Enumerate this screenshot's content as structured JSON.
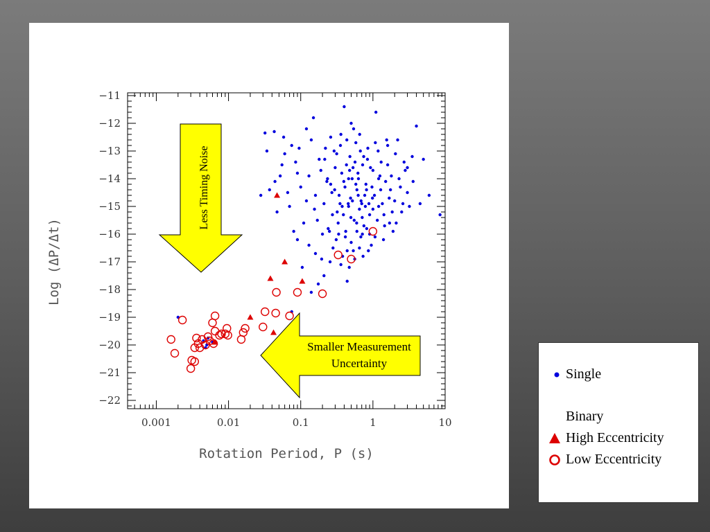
{
  "chart_data": {
    "type": "scatter",
    "title": "",
    "xlabel": "Rotation Period, P (s)",
    "ylabel": "Log (ΔP/Δt)",
    "x_scale": "log",
    "xlim": [
      0.0004,
      10
    ],
    "ylim": [
      -22.3,
      -10.9
    ],
    "x_ticks": [
      {
        "value": 0.001,
        "label": "0.001"
      },
      {
        "value": 0.01,
        "label": "0.01"
      },
      {
        "value": 0.1,
        "label": "0.1"
      },
      {
        "value": 1,
        "label": "1"
      },
      {
        "value": 10,
        "label": "10"
      }
    ],
    "y_ticks": [
      {
        "value": -11,
        "label": "−11"
      },
      {
        "value": -12,
        "label": "−12"
      },
      {
        "value": -13,
        "label": "−13"
      },
      {
        "value": -14,
        "label": "−14"
      },
      {
        "value": -15,
        "label": "−15"
      },
      {
        "value": -16,
        "label": "−16"
      },
      {
        "value": -17,
        "label": "−17"
      },
      {
        "value": -18,
        "label": "−18"
      },
      {
        "value": -19,
        "label": "−19"
      },
      {
        "value": -20,
        "label": "−20"
      },
      {
        "value": -21,
        "label": "−21"
      },
      {
        "value": -22,
        "label": "−22"
      }
    ],
    "grid": false,
    "legend_position": "outside-bottom-right",
    "series": [
      {
        "name": "Single",
        "marker": "dot",
        "color": "#0000dd",
        "points": [
          [
            0.002,
            -19.0
          ],
          [
            0.0045,
            -19.85
          ],
          [
            0.005,
            -20.0
          ],
          [
            0.006,
            -19.9
          ],
          [
            0.0052,
            -19.75
          ],
          [
            0.0048,
            -20.1
          ],
          [
            0.032,
            -12.35
          ],
          [
            0.043,
            -12.3
          ],
          [
            0.037,
            -14.4
          ],
          [
            0.044,
            -14.1
          ],
          [
            0.06,
            -13.1
          ],
          [
            0.055,
            -13.5
          ],
          [
            0.07,
            -15.0
          ],
          [
            0.075,
            -12.8
          ],
          [
            0.085,
            -13.4
          ],
          [
            0.09,
            -13.8
          ],
          [
            0.1,
            -14.3
          ],
          [
            0.12,
            -14.8
          ],
          [
            0.13,
            -13.9
          ],
          [
            0.14,
            -12.6
          ],
          [
            0.15,
            -11.8
          ],
          [
            0.16,
            -14.6
          ],
          [
            0.17,
            -15.5
          ],
          [
            0.18,
            -13.3
          ],
          [
            0.2,
            -16.0
          ],
          [
            0.21,
            -14.9
          ],
          [
            0.22,
            -12.9
          ],
          [
            0.24,
            -15.8
          ],
          [
            0.26,
            -14.2
          ],
          [
            0.28,
            -16.5
          ],
          [
            0.3,
            -13.6
          ],
          [
            0.32,
            -15.2
          ],
          [
            0.34,
            -14.6
          ],
          [
            0.36,
            -12.4
          ],
          [
            0.38,
            -16.8
          ],
          [
            0.4,
            -11.4
          ],
          [
            0.42,
            -15.9
          ],
          [
            0.44,
            -17.7
          ],
          [
            0.46,
            -14.0
          ],
          [
            0.48,
            -13.2
          ],
          [
            0.5,
            -16.3
          ],
          [
            0.52,
            -14.8
          ],
          [
            0.55,
            -15.5
          ],
          [
            0.58,
            -12.7
          ],
          [
            0.6,
            -14.4
          ],
          [
            0.62,
            -13.8
          ],
          [
            0.65,
            -15.1
          ],
          [
            0.68,
            -16.1
          ],
          [
            0.7,
            -14.9
          ],
          [
            0.72,
            -13.5
          ],
          [
            0.75,
            -15.7
          ],
          [
            0.8,
            -14.2
          ],
          [
            0.85,
            -12.9
          ],
          [
            0.9,
            -15.3
          ],
          [
            0.95,
            -16.4
          ],
          [
            1.0,
            -13.7
          ],
          [
            1.05,
            -14.6
          ],
          [
            1.1,
            -11.6
          ],
          [
            1.2,
            -15.0
          ],
          [
            1.3,
            -13.4
          ],
          [
            1.4,
            -16.2
          ],
          [
            1.5,
            -14.1
          ],
          [
            1.6,
            -12.8
          ],
          [
            1.7,
            -15.6
          ],
          [
            1.8,
            -13.9
          ],
          [
            2.0,
            -14.8
          ],
          [
            2.2,
            -12.6
          ],
          [
            2.5,
            -15.2
          ],
          [
            2.8,
            -13.7
          ],
          [
            3.0,
            -14.5
          ],
          [
            3.5,
            -13.2
          ],
          [
            4.0,
            -12.1
          ],
          [
            5.0,
            -13.3
          ],
          [
            8.5,
            -15.3
          ],
          [
            0.36,
            -17.1
          ],
          [
            0.47,
            -17.2
          ],
          [
            0.31,
            -16.2
          ],
          [
            0.25,
            -15.9
          ],
          [
            0.56,
            -16.9
          ],
          [
            0.65,
            -16.5
          ],
          [
            0.9,
            -16.0
          ],
          [
            1.2,
            -14.0
          ],
          [
            0.27,
            -14.5
          ],
          [
            0.33,
            -15.6
          ],
          [
            0.41,
            -14.3
          ],
          [
            0.46,
            -15.0
          ],
          [
            0.53,
            -13.6
          ],
          [
            0.6,
            -15.9
          ],
          [
            0.77,
            -14.6
          ],
          [
            0.84,
            -13.3
          ],
          [
            1.0,
            -15.1
          ],
          [
            0.19,
            -13.7
          ],
          [
            0.23,
            -14.1
          ],
          [
            0.29,
            -13.0
          ],
          [
            0.35,
            -14.9
          ],
          [
            0.39,
            -15.3
          ],
          [
            0.43,
            -13.5
          ],
          [
            0.49,
            -14.7
          ],
          [
            0.54,
            -12.2
          ],
          [
            0.63,
            -14.0
          ],
          [
            0.71,
            -15.4
          ],
          [
            0.82,
            -15.8
          ],
          [
            0.97,
            -14.3
          ],
          [
            1.15,
            -15.5
          ],
          [
            1.35,
            -14.9
          ],
          [
            1.6,
            -13.5
          ],
          [
            1.9,
            -15.9
          ],
          [
            2.4,
            -14.3
          ],
          [
            0.11,
            -15.6
          ],
          [
            0.095,
            -12.9
          ],
          [
            0.14,
            -18.1
          ],
          [
            0.075,
            -18.8
          ],
          [
            0.16,
            -16.7
          ],
          [
            0.21,
            -17.5
          ],
          [
            0.26,
            -12.5
          ],
          [
            0.37,
            -13.8
          ],
          [
            0.44,
            -16.6
          ],
          [
            0.5,
            -12.0
          ],
          [
            0.58,
            -14.2
          ],
          [
            0.67,
            -13.0
          ],
          [
            0.73,
            -16.8
          ],
          [
            0.88,
            -14.9
          ],
          [
            1.08,
            -12.7
          ],
          [
            1.25,
            -13.9
          ],
          [
            1.45,
            -15.7
          ],
          [
            1.75,
            -14.4
          ],
          [
            2.1,
            -15.6
          ],
          [
            2.7,
            -13.4
          ],
          [
            3.2,
            -15.0
          ],
          [
            0.12,
            -12.2
          ],
          [
            0.09,
            -16.2
          ],
          [
            0.066,
            -14.5
          ],
          [
            0.052,
            -13.9
          ],
          [
            0.047,
            -15.2
          ],
          [
            0.028,
            -14.6
          ],
          [
            0.034,
            -13.0
          ],
          [
            0.058,
            -12.5
          ],
          [
            0.08,
            -15.9
          ],
          [
            0.105,
            -17.2
          ],
          [
            0.13,
            -16.4
          ],
          [
            0.155,
            -15.1
          ],
          [
            0.175,
            -17.8
          ],
          [
            0.195,
            -16.9
          ],
          [
            0.215,
            -13.3
          ],
          [
            0.235,
            -14.0
          ],
          [
            0.255,
            -17.0
          ],
          [
            0.275,
            -15.3
          ],
          [
            0.295,
            -14.4
          ],
          [
            0.315,
            -13.1
          ],
          [
            0.335,
            -16.0
          ],
          [
            0.355,
            -12.8
          ],
          [
            0.375,
            -15.0
          ],
          [
            0.395,
            -14.1
          ],
          [
            0.415,
            -16.1
          ],
          [
            0.435,
            -12.6
          ],
          [
            0.455,
            -14.9
          ],
          [
            0.475,
            -13.7
          ],
          [
            0.495,
            -15.4
          ],
          [
            0.515,
            -14.0
          ],
          [
            0.535,
            -16.6
          ],
          [
            0.565,
            -13.4
          ],
          [
            0.595,
            -15.6
          ],
          [
            0.625,
            -14.6
          ],
          [
            0.655,
            -12.4
          ],
          [
            0.685,
            -14.8
          ],
          [
            0.715,
            -16.0
          ],
          [
            0.745,
            -13.2
          ],
          [
            0.785,
            -15.0
          ],
          [
            0.815,
            -14.4
          ],
          [
            0.865,
            -16.6
          ],
          [
            0.925,
            -13.6
          ],
          [
            0.985,
            -14.7
          ],
          [
            1.07,
            -16.1
          ],
          [
            1.18,
            -13.0
          ],
          [
            1.28,
            -14.4
          ],
          [
            1.42,
            -15.3
          ],
          [
            1.55,
            -12.6
          ],
          [
            1.68,
            -14.7
          ],
          [
            1.85,
            -15.2
          ],
          [
            2.05,
            -13.1
          ],
          [
            2.3,
            -14.0
          ],
          [
            2.6,
            -14.9
          ],
          [
            3.0,
            -13.6
          ],
          [
            3.6,
            -14.1
          ],
          [
            4.5,
            -14.9
          ],
          [
            6.0,
            -14.6
          ]
        ]
      },
      {
        "name": "High Eccentricity",
        "marker": "triangle",
        "color": "#dd0000",
        "points": [
          [
            0.047,
            -14.6
          ],
          [
            0.06,
            -17.0
          ],
          [
            0.038,
            -17.6
          ],
          [
            0.105,
            -17.7
          ],
          [
            0.02,
            -19.0
          ],
          [
            0.042,
            -19.55
          ],
          [
            0.0065,
            -19.9
          ]
        ]
      },
      {
        "name": "Low Eccentricity",
        "marker": "circle",
        "color": "#dd0000",
        "points": [
          [
            0.0016,
            -19.8
          ],
          [
            0.0018,
            -20.3
          ],
          [
            0.0023,
            -19.1
          ],
          [
            0.003,
            -20.85
          ],
          [
            0.0031,
            -20.55
          ],
          [
            0.0034,
            -20.6
          ],
          [
            0.0034,
            -20.1
          ],
          [
            0.0036,
            -19.75
          ],
          [
            0.0038,
            -19.95
          ],
          [
            0.004,
            -20.1
          ],
          [
            0.0043,
            -19.8
          ],
          [
            0.0048,
            -20.0
          ],
          [
            0.0052,
            -19.7
          ],
          [
            0.0055,
            -19.85
          ],
          [
            0.006,
            -19.2
          ],
          [
            0.0062,
            -19.95
          ],
          [
            0.0065,
            -18.95
          ],
          [
            0.0065,
            -19.5
          ],
          [
            0.0075,
            -19.65
          ],
          [
            0.008,
            -19.6
          ],
          [
            0.009,
            -19.6
          ],
          [
            0.0095,
            -19.4
          ],
          [
            0.0098,
            -19.65
          ],
          [
            0.015,
            -19.8
          ],
          [
            0.016,
            -19.55
          ],
          [
            0.017,
            -19.4
          ],
          [
            0.03,
            -19.35
          ],
          [
            0.032,
            -18.8
          ],
          [
            0.045,
            -18.85
          ],
          [
            0.046,
            -18.1
          ],
          [
            0.07,
            -18.95
          ],
          [
            0.09,
            -18.1
          ],
          [
            0.2,
            -18.15
          ],
          [
            0.33,
            -16.75
          ],
          [
            0.5,
            -16.9
          ],
          [
            1.0,
            -15.9
          ]
        ]
      }
    ],
    "annotations": [
      {
        "id": "less-timing-noise",
        "text": "Less Timing Noise",
        "direction": "down"
      },
      {
        "id": "smaller-measurement",
        "lines": [
          "Smaller Measurement",
          "Uncertainty"
        ],
        "direction": "left"
      }
    ],
    "annotation_fill": "#ffff00"
  },
  "legend": {
    "single_label": "Single",
    "binary_heading": "Binary",
    "high_label": "High Eccentricity",
    "low_label": "Low Eccentricity"
  }
}
